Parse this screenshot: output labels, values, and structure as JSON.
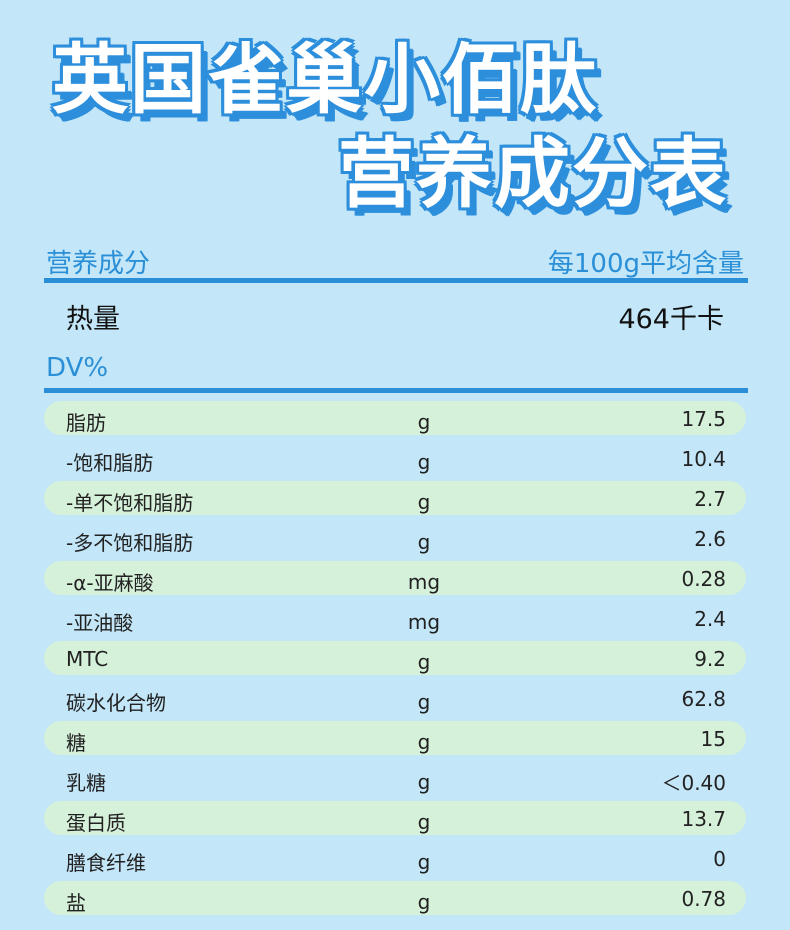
{
  "title": {
    "line1": "英国雀巢小佰肽",
    "line2": "营养成分表"
  },
  "header": {
    "left": "营养成分",
    "right": "每100g平均含量"
  },
  "energy": {
    "label": "热量",
    "value": "464千卡"
  },
  "dv_label": "DV%",
  "colors": {
    "background": "#c3e6f8",
    "accent": "#2a8fd6",
    "row_highlight": "#d6f1da"
  },
  "rows": [
    {
      "name": "脂肪",
      "unit": "g",
      "value": "17.5"
    },
    {
      "name": "-饱和脂肪",
      "unit": "g",
      "value": "10.4"
    },
    {
      "name": "-单不饱和脂肪",
      "unit": "g",
      "value": "2.7"
    },
    {
      "name": "-多不饱和脂肪",
      "unit": "g",
      "value": "2.6"
    },
    {
      "name": "-α-亚麻酸",
      "unit": "mg",
      "value": "0.28"
    },
    {
      "name": "-亚油酸",
      "unit": "mg",
      "value": "2.4"
    },
    {
      "name": "MTC",
      "unit": "g",
      "value": "9.2"
    },
    {
      "name": "碳水化合物",
      "unit": "g",
      "value": "62.8"
    },
    {
      "name": "糖",
      "unit": "g",
      "value": "15"
    },
    {
      "name": "乳糖",
      "unit": "g",
      "value": "＜0.40"
    },
    {
      "name": "蛋白质",
      "unit": "g",
      "value": "13.7"
    },
    {
      "name": "膳食纤维",
      "unit": "g",
      "value": "0"
    },
    {
      "name": "盐",
      "unit": "g",
      "value": "0.78"
    }
  ]
}
